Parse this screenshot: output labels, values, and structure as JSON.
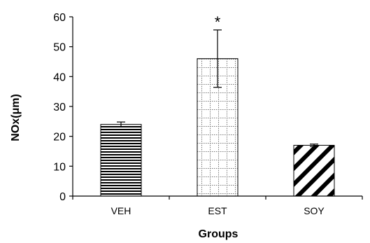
{
  "chart_data": {
    "type": "bar",
    "categories": [
      "VEH",
      "EST",
      "SOY"
    ],
    "values": [
      24,
      46,
      17
    ],
    "error": [
      0.8,
      9.6,
      0.4
    ],
    "patterns": [
      "horizontal-stripes",
      "dotted-grid",
      "diagonal-stripes"
    ],
    "xlabel": "Groups",
    "ylabel": "NOx(μm)",
    "ylim": [
      0,
      60
    ],
    "yticks": [
      0,
      10,
      20,
      30,
      40,
      50,
      60
    ],
    "annotations": [
      {
        "category": "EST",
        "text": "*"
      }
    ],
    "grid": false,
    "legend": false
  }
}
